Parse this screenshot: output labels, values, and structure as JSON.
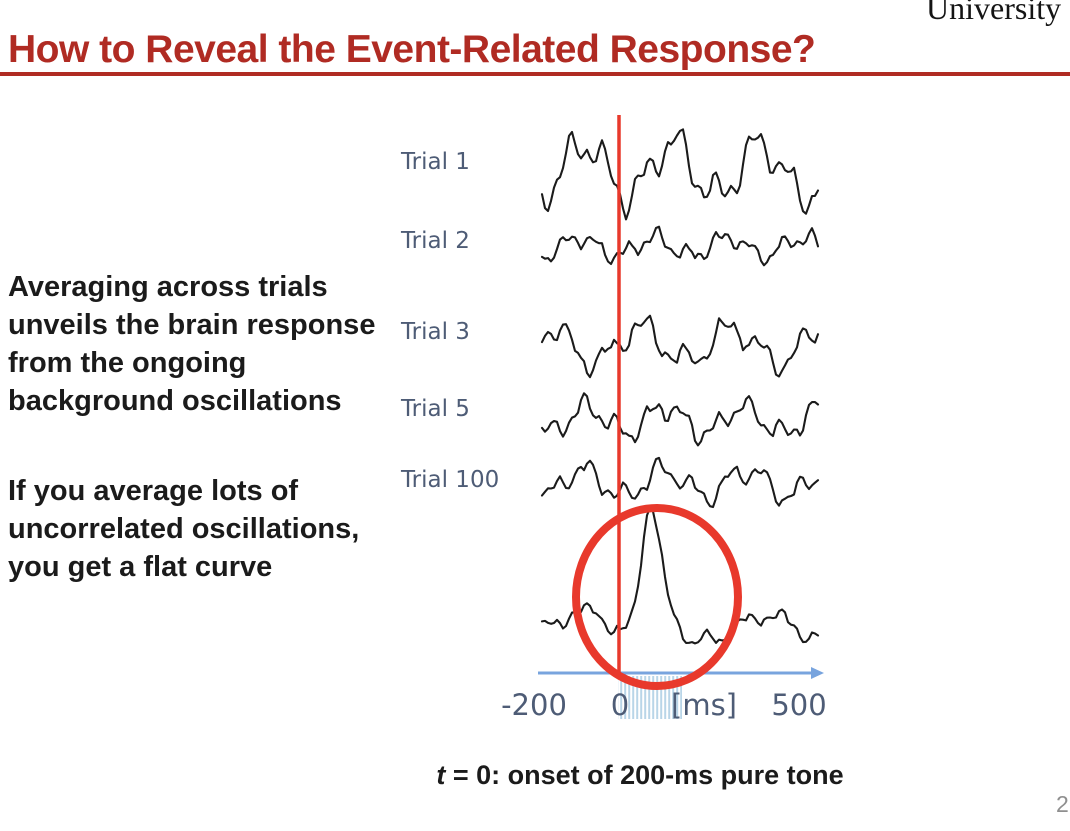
{
  "colors": {
    "title_red": "#b02b23",
    "accent_red": "#e8392c",
    "label_slate": "#4e5c76",
    "axis_blue": "#78a4de",
    "hatch_blue": "#b9d5e8",
    "text_black": "#1b1b1b",
    "page_gray": "#8f8f8f"
  },
  "header": {
    "institution": "University",
    "title": "How to Reveal the Event-Related Response?"
  },
  "left_text": {
    "para1_lines": [
      "Averaging across trials",
      "unveils the brain response",
      "from the ongoing",
      "background oscillations"
    ],
    "para2_lines": [
      "If you average lots of",
      "uncorrelated oscillations,",
      "you get a flat curve"
    ]
  },
  "figure": {
    "trial_labels": [
      "Trial 1",
      "Trial 2",
      "Trial 3",
      "Trial 5",
      "Trial 100"
    ],
    "axis": {
      "neg_tick": "-200",
      "zero_tick": "0",
      "unit_label": "[ms]",
      "pos_tick": "500"
    }
  },
  "caption": {
    "t_symbol": "t",
    "text": " = 0: onset of 200-ms pure tone"
  },
  "page_number": "2"
}
